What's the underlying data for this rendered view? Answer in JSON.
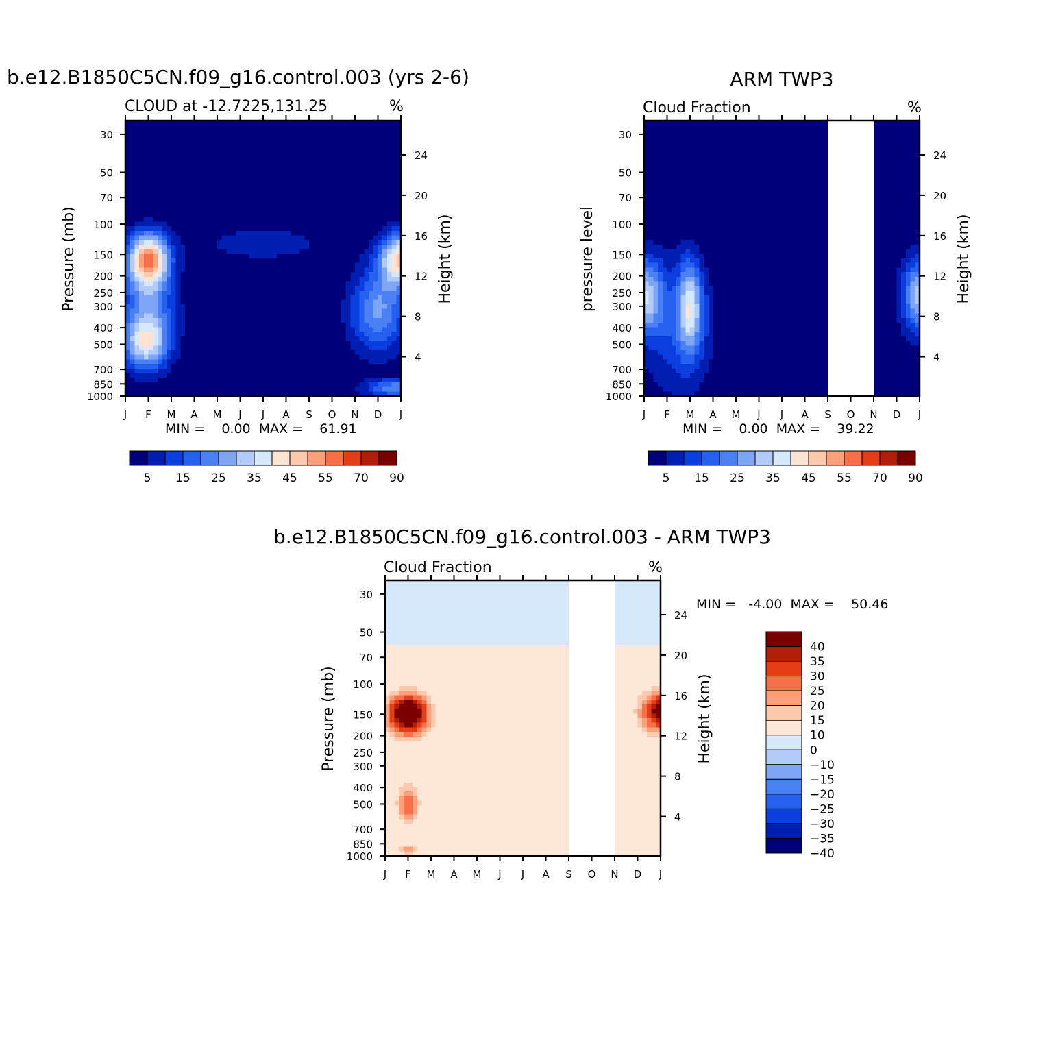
{
  "chart_data": [
    {
      "type": "heatmap",
      "title": "b.e12.B1850C5CN.f09_g16.control.003 (yrs 2-6)",
      "subtitle": "CLOUD at -12.7225,131.25",
      "units": "%",
      "ylabel": "Pressure (mb)",
      "ylabel_right": "Height (km)",
      "stats": "MIN =    0.00  MAX =    61.91",
      "x_ticks": [
        "J",
        "F",
        "M",
        "A",
        "M",
        "J",
        "J",
        "A",
        "S",
        "O",
        "N",
        "D",
        "J"
      ],
      "y_ticks": [
        30,
        50,
        70,
        100,
        150,
        200,
        250,
        300,
        400,
        500,
        700,
        850,
        1000
      ],
      "y_ticks_right": [
        24,
        20,
        16,
        12,
        8,
        4
      ],
      "ylim": [
        1000,
        25
      ],
      "y_scale": "log",
      "grid": false,
      "levels": [
        5,
        10,
        15,
        20,
        25,
        30,
        35,
        40,
        45,
        50,
        55,
        60,
        70,
        80,
        90
      ],
      "colorbar_labels": [
        "5",
        "15",
        "25",
        "35",
        "45",
        "55",
        "70",
        "90"
      ],
      "colorbar_orientation": "horizontal",
      "colors": [
        "#00007a",
        "#001eb2",
        "#0a3ede",
        "#2660ef",
        "#4a80f4",
        "#7ea6f5",
        "#b3cbf8",
        "#d6e8fb",
        "#fde4d2",
        "#fcc9ad",
        "#fba07a",
        "#f7704a",
        "#e53d16",
        "#b21e07",
        "#7a0000"
      ],
      "gaps": [],
      "features": [
        {
          "x": 1.0,
          "y": 160,
          "sx": 0.9,
          "sy": 0.35,
          "v": 52
        },
        {
          "x": 12.0,
          "y": 160,
          "sx": 0.9,
          "sy": 0.35,
          "v": 45
        },
        {
          "x": 0.9,
          "y": 500,
          "sx": 1.0,
          "sy": 0.35,
          "v": 33
        },
        {
          "x": 1.0,
          "y": 300,
          "sx": 1.2,
          "sy": 0.55,
          "v": 22
        },
        {
          "x": 11.0,
          "y": 320,
          "sx": 1.2,
          "sy": 0.55,
          "v": 26
        },
        {
          "x": 12.0,
          "y": 900,
          "sx": 1.5,
          "sy": 0.12,
          "v": 25
        },
        {
          "x": 6.0,
          "y": 130,
          "sx": 3.0,
          "sy": 0.25,
          "v": 8
        }
      ]
    },
    {
      "type": "heatmap",
      "title": "ARM TWP3",
      "subtitle": "Cloud Fraction",
      "units": "%",
      "ylabel": "pressure level",
      "ylabel_right": "Height (km)",
      "stats": "MIN =    0.00  MAX =    39.22",
      "x_ticks": [
        "J",
        "F",
        "M",
        "A",
        "M",
        "J",
        "J",
        "A",
        "S",
        "O",
        "N",
        "D",
        "J"
      ],
      "y_ticks": [
        30,
        50,
        70,
        100,
        150,
        200,
        250,
        300,
        400,
        500,
        700,
        850,
        1000
      ],
      "y_ticks_right": [
        24,
        20,
        16,
        12,
        8,
        4
      ],
      "ylim": [
        1000,
        25
      ],
      "y_scale": "log",
      "grid": false,
      "levels": [
        5,
        10,
        15,
        20,
        25,
        30,
        35,
        40,
        45,
        50,
        55,
        60,
        70,
        80,
        90
      ],
      "colorbar_labels": [
        "5",
        "15",
        "25",
        "35",
        "45",
        "55",
        "70",
        "90"
      ],
      "colorbar_orientation": "horizontal",
      "colors": [
        "#00007a",
        "#001eb2",
        "#0a3ede",
        "#2660ef",
        "#4a80f4",
        "#7ea6f5",
        "#b3cbf8",
        "#d6e8fb",
        "#fde4d2",
        "#fcc9ad",
        "#fba07a",
        "#f7704a",
        "#e53d16",
        "#b21e07",
        "#7a0000"
      ],
      "gaps": [
        [
          8,
          10
        ]
      ],
      "features": [
        {
          "x": 0.0,
          "y": 260,
          "sx": 0.8,
          "sy": 0.5,
          "v": 32
        },
        {
          "x": 2.0,
          "y": 300,
          "sx": 0.5,
          "sy": 0.6,
          "v": 30
        },
        {
          "x": 12.0,
          "y": 260,
          "sx": 0.8,
          "sy": 0.5,
          "v": 32
        },
        {
          "x": 1.5,
          "y": 400,
          "sx": 1.5,
          "sy": 0.9,
          "v": 14
        }
      ]
    },
    {
      "type": "heatmap",
      "title": "b.e12.B1850C5CN.f09_g16.control.003 - ARM TWP3",
      "subtitle": "Cloud Fraction",
      "units": "%",
      "ylabel": "Pressure (mb)",
      "ylabel_right": "Height (km)",
      "stats": "MIN =   -4.00  MAX =    50.46",
      "x_ticks": [
        "J",
        "F",
        "M",
        "A",
        "M",
        "J",
        "J",
        "A",
        "S",
        "O",
        "N",
        "D",
        "J"
      ],
      "y_ticks": [
        30,
        50,
        70,
        100,
        150,
        200,
        250,
        300,
        400,
        500,
        700,
        850,
        1000
      ],
      "y_ticks_right": [
        24,
        20,
        16,
        12,
        8,
        4
      ],
      "ylim": [
        1000,
        25
      ],
      "y_scale": "log",
      "grid": false,
      "levels": [
        -40,
        -35,
        -30,
        -25,
        -20,
        -15,
        -10,
        0,
        10,
        15,
        20,
        25,
        30,
        35,
        40
      ],
      "colorbar_labels": [
        "40",
        "35",
        "30",
        "25",
        "20",
        "15",
        "10",
        "0",
        "-10",
        "-15",
        "-20",
        "-25",
        "-30",
        "-35",
        "-40"
      ],
      "colorbar_orientation": "vertical",
      "colors": [
        "#00007a",
        "#001eb2",
        "#0a3ede",
        "#2660ef",
        "#4a80f4",
        "#7ea6f5",
        "#b3cbf8",
        "#d6e8fb",
        "#fde8d8",
        "#fcc9ad",
        "#fba07a",
        "#f7704a",
        "#e53d16",
        "#b21e07",
        "#7a0000"
      ],
      "gaps": [
        [
          8,
          10
        ]
      ],
      "features": [
        {
          "x": 1.0,
          "y": 150,
          "sx": 0.9,
          "sy": 0.28,
          "v": 48
        },
        {
          "x": 12.0,
          "y": 145,
          "sx": 0.9,
          "sy": 0.28,
          "v": 37
        },
        {
          "x": 1.0,
          "y": 500,
          "sx": 0.5,
          "sy": 0.28,
          "v": 22
        },
        {
          "x": 1.0,
          "y": 920,
          "sx": 0.6,
          "sy": 0.08,
          "v": 14
        }
      ]
    }
  ]
}
